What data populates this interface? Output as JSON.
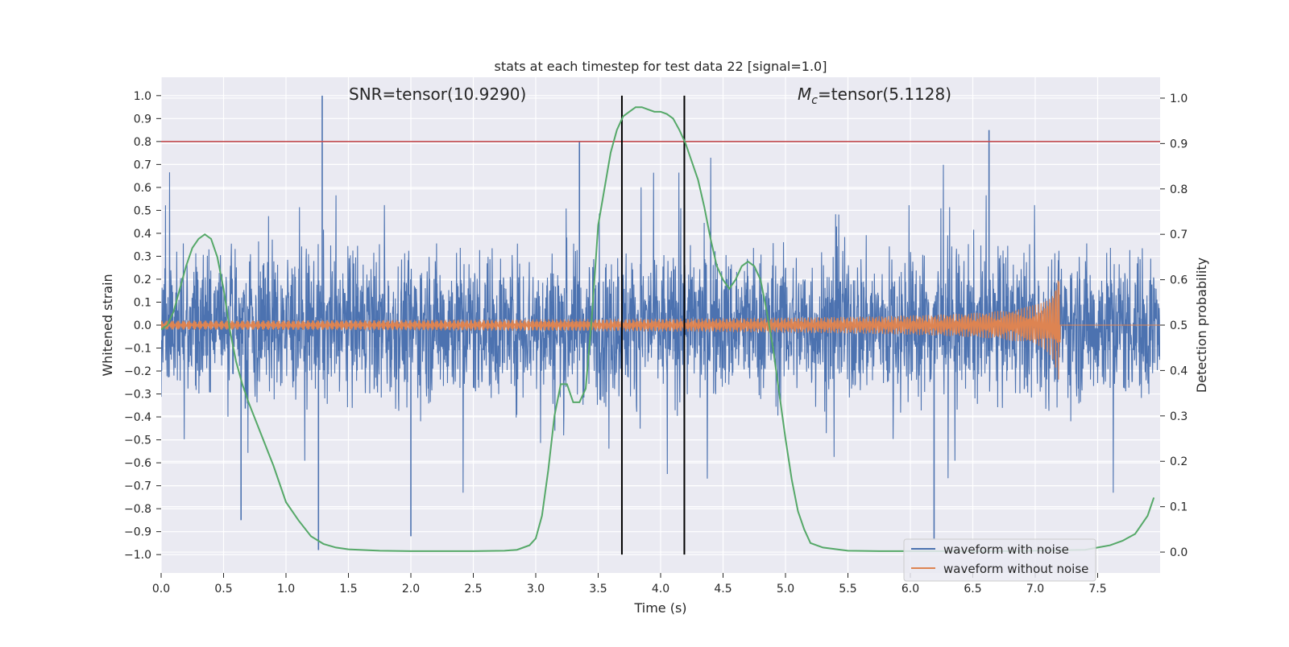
{
  "chart_data": {
    "type": "line",
    "title": "stats at each timestep for test data 22 [signal=1.0]",
    "xlabel": "Time (s)",
    "ylabel": "Whitened strain",
    "y2label": "Detection probability",
    "xlim": [
      0.0,
      8.0
    ],
    "ylim": [
      -1.08,
      1.08
    ],
    "y2lim": [
      -0.046,
      1.046
    ],
    "xticks": [
      "0.0",
      "0.5",
      "1.0",
      "1.5",
      "2.0",
      "2.5",
      "3.0",
      "3.5",
      "4.0",
      "4.5",
      "5.0",
      "5.5",
      "6.0",
      "6.5",
      "7.0",
      "7.5"
    ],
    "yticks": [
      "1.0",
      "0.9",
      "0.8",
      "0.7",
      "0.6",
      "0.5",
      "0.4",
      "0.3",
      "0.2",
      "0.1",
      "0.0",
      "−0.1",
      "−0.2",
      "−0.3",
      "−0.4",
      "−0.5",
      "−0.6",
      "−0.7",
      "−0.8",
      "−0.9",
      "−1.0"
    ],
    "y2ticks": [
      "1.0",
      "0.9",
      "0.8",
      "0.7",
      "0.6",
      "0.5",
      "0.4",
      "0.3",
      "0.2",
      "0.1",
      "0.0"
    ],
    "grid": true,
    "legend_position": "bottom-right",
    "annotations": {
      "snr": "SNR=tensor(10.9290)",
      "mc_symbol": "M",
      "mc_sub": "c",
      "mc_rest": "=tensor(5.1128)"
    },
    "threshold": {
      "y": 0.8,
      "color": "#c44e52"
    },
    "vlines": [
      3.69,
      4.19
    ],
    "series": [
      {
        "name": "waveform with noise",
        "color": "#4c72b0",
        "axis": "left",
        "kind": "noise",
        "duration": 8.0,
        "amplitude_typical": 0.35,
        "peaks": [
          [
            1.29,
            1.0
          ],
          [
            1.26,
            -0.98
          ],
          [
            6.63,
            0.85
          ],
          [
            6.19,
            -0.93
          ],
          [
            2.0,
            -0.92
          ],
          [
            0.64,
            -0.85
          ],
          [
            3.35,
            0.8
          ]
        ]
      },
      {
        "name": "waveform without noise",
        "color": "#dd8452",
        "axis": "left",
        "kind": "chirp",
        "start": 0.0,
        "end": 7.2,
        "amp_start": 0.02,
        "amp_peak": 0.26
      },
      {
        "name": "detection probability",
        "color": "#55a868",
        "axis": "right",
        "kind": "line",
        "x": [
          0.0,
          0.05,
          0.1,
          0.15,
          0.2,
          0.25,
          0.3,
          0.35,
          0.4,
          0.45,
          0.5,
          0.55,
          0.6,
          0.65,
          0.7,
          0.8,
          0.9,
          1.0,
          1.1,
          1.2,
          1.3,
          1.4,
          1.5,
          1.75,
          2.0,
          2.25,
          2.5,
          2.75,
          2.85,
          2.95,
          3.0,
          3.05,
          3.1,
          3.15,
          3.2,
          3.25,
          3.3,
          3.35,
          3.4,
          3.45,
          3.5,
          3.55,
          3.6,
          3.65,
          3.7,
          3.75,
          3.8,
          3.85,
          3.9,
          3.95,
          4.0,
          4.05,
          4.1,
          4.15,
          4.2,
          4.25,
          4.3,
          4.35,
          4.4,
          4.45,
          4.5,
          4.55,
          4.6,
          4.65,
          4.7,
          4.75,
          4.8,
          4.85,
          4.9,
          4.95,
          5.0,
          5.05,
          5.1,
          5.15,
          5.2,
          5.3,
          5.5,
          5.75,
          6.0,
          6.25,
          6.5,
          6.75,
          7.0,
          7.2,
          7.4,
          7.5,
          7.6,
          7.7,
          7.8,
          7.9,
          7.95
        ],
        "y": [
          0.49,
          0.5,
          0.53,
          0.58,
          0.63,
          0.67,
          0.69,
          0.7,
          0.69,
          0.65,
          0.58,
          0.49,
          0.42,
          0.37,
          0.33,
          0.26,
          0.19,
          0.11,
          0.07,
          0.035,
          0.018,
          0.01,
          0.006,
          0.003,
          0.002,
          0.002,
          0.002,
          0.003,
          0.005,
          0.015,
          0.03,
          0.08,
          0.18,
          0.3,
          0.37,
          0.37,
          0.33,
          0.33,
          0.36,
          0.52,
          0.72,
          0.8,
          0.88,
          0.93,
          0.96,
          0.97,
          0.98,
          0.98,
          0.975,
          0.97,
          0.97,
          0.965,
          0.955,
          0.93,
          0.9,
          0.86,
          0.82,
          0.76,
          0.69,
          0.63,
          0.6,
          0.58,
          0.6,
          0.63,
          0.64,
          0.63,
          0.6,
          0.53,
          0.45,
          0.35,
          0.25,
          0.16,
          0.09,
          0.05,
          0.02,
          0.01,
          0.003,
          0.002,
          0.002,
          0.002,
          0.002,
          0.002,
          0.003,
          0.004,
          0.005,
          0.01,
          0.015,
          0.025,
          0.04,
          0.08,
          0.12
        ]
      }
    ]
  }
}
